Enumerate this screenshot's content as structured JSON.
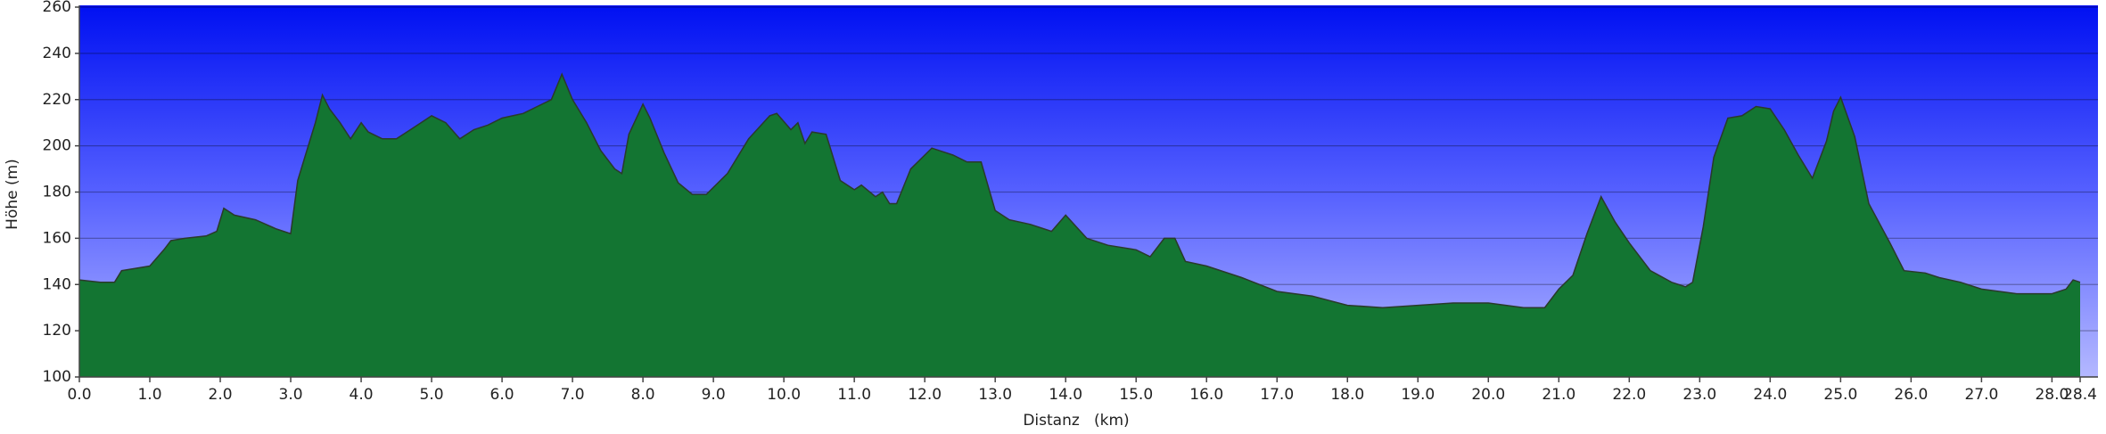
{
  "chart_data": {
    "type": "area",
    "x_label": "Distanz   (km)",
    "y_label": "Höhe (m)",
    "x": [
      0.0,
      0.3,
      0.5,
      0.6,
      0.8,
      1.0,
      1.2,
      1.3,
      1.5,
      1.8,
      1.95,
      2.05,
      2.2,
      2.5,
      2.8,
      3.0,
      3.1,
      3.2,
      3.35,
      3.45,
      3.55,
      3.7,
      3.85,
      4.0,
      4.1,
      4.3,
      4.5,
      4.7,
      5.0,
      5.2,
      5.4,
      5.6,
      5.8,
      6.0,
      6.3,
      6.5,
      6.7,
      6.85,
      7.0,
      7.2,
      7.4,
      7.6,
      7.7,
      7.8,
      8.0,
      8.1,
      8.3,
      8.5,
      8.7,
      8.9,
      9.2,
      9.5,
      9.8,
      9.9,
      10.1,
      10.2,
      10.3,
      10.4,
      10.6,
      10.8,
      11.0,
      11.1,
      11.3,
      11.4,
      11.5,
      11.6,
      11.8,
      12.0,
      12.1,
      12.4,
      12.6,
      12.8,
      13.0,
      13.2,
      13.5,
      13.8,
      14.0,
      14.3,
      14.6,
      15.0,
      15.2,
      15.4,
      15.55,
      15.7,
      16.0,
      16.5,
      17.0,
      17.5,
      18.0,
      18.5,
      19.0,
      19.5,
      20.0,
      20.5,
      20.8,
      21.0,
      21.2,
      21.4,
      21.6,
      21.8,
      22.0,
      22.3,
      22.6,
      22.8,
      22.9,
      23.05,
      23.2,
      23.4,
      23.6,
      23.8,
      24.0,
      24.2,
      24.4,
      24.6,
      24.8,
      24.9,
      25.0,
      25.2,
      25.4,
      25.7,
      25.9,
      26.2,
      26.4,
      26.7,
      27.0,
      27.5,
      28.0,
      28.2,
      28.3,
      28.4
    ],
    "values": [
      142,
      141,
      141,
      146,
      147,
      148,
      155,
      159,
      160,
      161,
      163,
      173,
      170,
      168,
      164,
      162,
      185,
      195,
      210,
      222,
      216,
      210,
      203,
      210,
      206,
      203,
      203,
      207,
      213,
      210,
      203,
      207,
      209,
      212,
      214,
      217,
      220,
      231,
      220,
      210,
      198,
      190,
      188,
      205,
      218,
      212,
      197,
      184,
      179,
      179,
      188,
      203,
      213,
      214,
      207,
      210,
      201,
      206,
      205,
      185,
      181,
      183,
      178,
      180,
      175,
      175,
      190,
      196,
      199,
      196,
      193,
      193,
      172,
      168,
      166,
      163,
      170,
      160,
      157,
      155,
      152,
      160,
      160,
      150,
      148,
      143,
      137,
      135,
      131,
      130,
      131,
      132,
      132,
      130,
      130,
      138,
      144,
      162,
      178,
      167,
      158,
      146,
      141,
      139,
      141,
      165,
      195,
      212,
      213,
      217,
      216,
      207,
      196,
      186,
      202,
      215,
      221,
      204,
      175,
      158,
      146,
      145,
      143,
      141,
      138,
      136,
      136,
      138,
      142,
      141
    ],
    "color": "#22a94a",
    "xlim": [
      0,
      28.4
    ],
    "ylim": [
      100,
      260
    ],
    "xticks": [
      {
        "value": 0,
        "label": "0.0"
      },
      {
        "value": 1,
        "label": "1.0"
      },
      {
        "value": 2,
        "label": "2.0"
      },
      {
        "value": 3,
        "label": "3.0"
      },
      {
        "value": 4,
        "label": "4.0"
      },
      {
        "value": 5,
        "label": "5.0"
      },
      {
        "value": 6,
        "label": "6.0"
      },
      {
        "value": 7,
        "label": "7.0"
      },
      {
        "value": 8,
        "label": "8.0"
      },
      {
        "value": 9,
        "label": "9.0"
      },
      {
        "value": 10,
        "label": "10.0"
      },
      {
        "value": 11,
        "label": "11.0"
      },
      {
        "value": 12,
        "label": "12.0"
      },
      {
        "value": 13,
        "label": "13.0"
      },
      {
        "value": 14,
        "label": "14.0"
      },
      {
        "value": 15,
        "label": "15.0"
      },
      {
        "value": 16,
        "label": "16.0"
      },
      {
        "value": 17,
        "label": "17.0"
      },
      {
        "value": 18,
        "label": "18.0"
      },
      {
        "value": 19,
        "label": "19.0"
      },
      {
        "value": 20,
        "label": "20.0"
      },
      {
        "value": 21,
        "label": "21.0"
      },
      {
        "value": 22,
        "label": "22.0"
      },
      {
        "value": 23,
        "label": "23.0"
      },
      {
        "value": 24,
        "label": "24.0"
      },
      {
        "value": 25,
        "label": "25.0"
      },
      {
        "value": 26,
        "label": "26.0"
      },
      {
        "value": 27,
        "label": "27.0"
      },
      {
        "value": 28,
        "label": "28.0"
      },
      28.4
    ],
    "yticks": [
      100,
      120,
      140,
      160,
      180,
      200,
      220,
      240,
      260
    ],
    "grid": true
  }
}
